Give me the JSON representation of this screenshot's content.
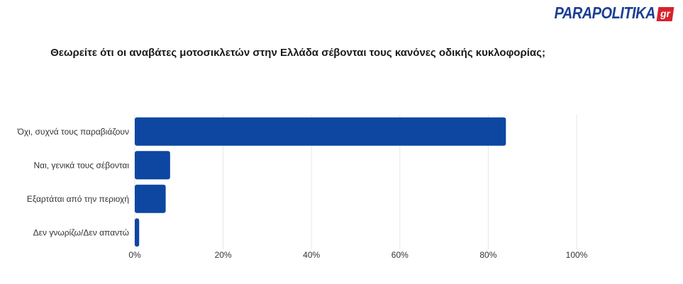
{
  "brand": {
    "name": "PARAPOLITIKA",
    "suffix": "gr"
  },
  "chart_data": {
    "type": "bar",
    "orientation": "horizontal",
    "title": "Θεωρείτε ότι οι αναβάτες μοτοσικλετών στην Ελλάδα σέβονται τους κανόνες οδικής κυκλοφορίας;",
    "categories": [
      "Όχι, συχνά τους παραβιάζουν",
      "Ναι, γενικά τους σέβονται",
      "Εξαρτάται από την περιοχή",
      "Δεν γνωρίζω/Δεν απαντώ"
    ],
    "values": [
      84,
      8,
      7,
      1
    ],
    "xlim": [
      0,
      100
    ],
    "x_ticks": [
      "0%",
      "20%",
      "40%",
      "60%",
      "80%",
      "100%"
    ],
    "grid": true,
    "bar_color": "#0d47a1"
  }
}
